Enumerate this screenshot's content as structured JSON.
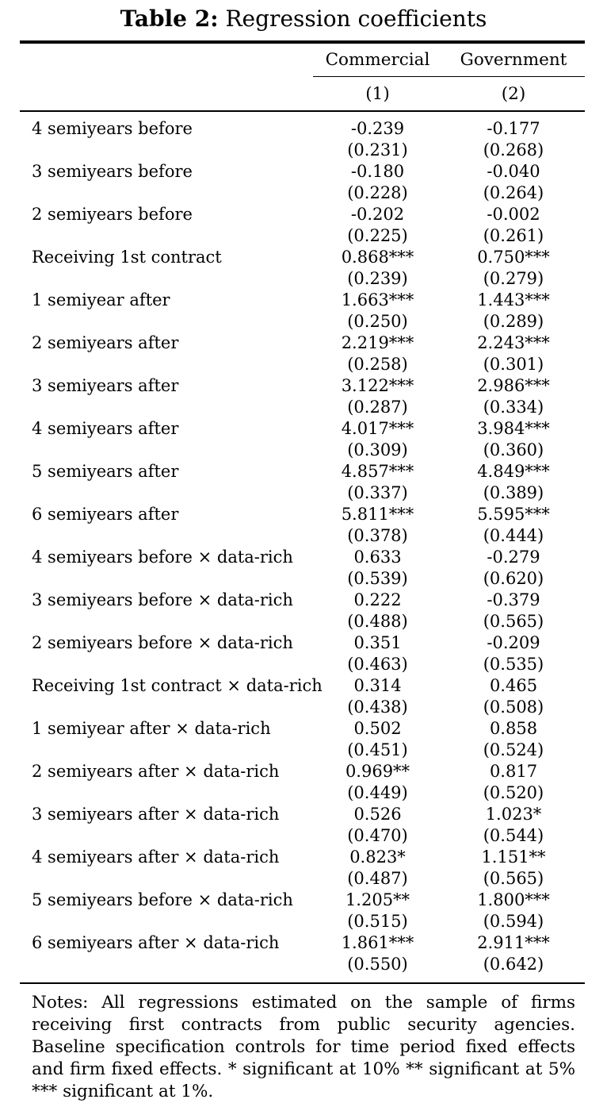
{
  "title": {
    "tag": "Table 2:",
    "text": " Regression coefficients"
  },
  "table": {
    "column_groups": [
      "Commercial",
      "Government"
    ],
    "column_numbers": [
      "(1)",
      "(2)"
    ],
    "rows": [
      {
        "label": "4 semiyears before",
        "coef": [
          "-0.239",
          "-0.177"
        ],
        "se": [
          "(0.231)",
          "(0.268)"
        ]
      },
      {
        "label": "3 semiyears before",
        "coef": [
          "-0.180",
          "-0.040"
        ],
        "se": [
          "(0.228)",
          "(0.264)"
        ]
      },
      {
        "label": "2 semiyears before",
        "coef": [
          "-0.202",
          "-0.002"
        ],
        "se": [
          "(0.225)",
          "(0.261)"
        ]
      },
      {
        "label": "Receiving 1st contract",
        "coef": [
          "0.868***",
          "0.750***"
        ],
        "se": [
          "(0.239)",
          "(0.279)"
        ]
      },
      {
        "label": "1 semiyear after",
        "coef": [
          "1.663***",
          "1.443***"
        ],
        "se": [
          "(0.250)",
          "(0.289)"
        ]
      },
      {
        "label": "2 semiyears after",
        "coef": [
          "2.219***",
          "2.243***"
        ],
        "se": [
          "(0.258)",
          "(0.301)"
        ]
      },
      {
        "label": "3 semiyears after",
        "coef": [
          "3.122***",
          "2.986***"
        ],
        "se": [
          "(0.287)",
          "(0.334)"
        ]
      },
      {
        "label": "4 semiyears after",
        "coef": [
          "4.017***",
          "3.984***"
        ],
        "se": [
          "(0.309)",
          "(0.360)"
        ]
      },
      {
        "label": "5 semiyears after",
        "coef": [
          "4.857***",
          "4.849***"
        ],
        "se": [
          "(0.337)",
          "(0.389)"
        ]
      },
      {
        "label": "6 semiyears after",
        "coef": [
          "5.811***",
          "5.595***"
        ],
        "se": [
          "(0.378)",
          "(0.444)"
        ]
      },
      {
        "label": "4 semiyears before × data-rich",
        "coef": [
          "0.633",
          "-0.279"
        ],
        "se": [
          "(0.539)",
          "(0.620)"
        ]
      },
      {
        "label": "3 semiyears before × data-rich",
        "coef": [
          "0.222",
          "-0.379"
        ],
        "se": [
          "(0.488)",
          "(0.565)"
        ]
      },
      {
        "label": "2 semiyears before × data-rich",
        "coef": [
          "0.351",
          "-0.209"
        ],
        "se": [
          "(0.463)",
          "(0.535)"
        ]
      },
      {
        "label": "Receiving 1st contract × data-rich",
        "coef": [
          "0.314",
          "0.465"
        ],
        "se": [
          "(0.438)",
          "(0.508)"
        ]
      },
      {
        "label": "1 semiyear after × data-rich",
        "coef": [
          "0.502",
          "0.858"
        ],
        "se": [
          "(0.451)",
          "(0.524)"
        ]
      },
      {
        "label": "2 semiyears after × data-rich",
        "coef": [
          "0.969**",
          "0.817"
        ],
        "se": [
          "(0.449)",
          "(0.520)"
        ]
      },
      {
        "label": "3 semiyears after × data-rich",
        "coef": [
          "0.526",
          "1.023*"
        ],
        "se": [
          "(0.470)",
          "(0.544)"
        ]
      },
      {
        "label": "4 semiyears after × data-rich",
        "coef": [
          "0.823*",
          "1.151**"
        ],
        "se": [
          "(0.487)",
          "(0.565)"
        ]
      },
      {
        "label": "5 semiyears before × data-rich",
        "coef": [
          "1.205**",
          "1.800***"
        ],
        "se": [
          "(0.515)",
          "(0.594)"
        ]
      },
      {
        "label": "6 semiyears after × data-rich",
        "coef": [
          "1.861***",
          "2.911***"
        ],
        "se": [
          "(0.550)",
          "(0.642)"
        ]
      }
    ]
  },
  "notes": "Notes: All regressions estimated on the sample of firms receiving first contracts from public security agencies. Baseline specification controls for time period fixed effects and firm fixed effects. * significant at 10% ** significant at 5% *** significant at 1%."
}
